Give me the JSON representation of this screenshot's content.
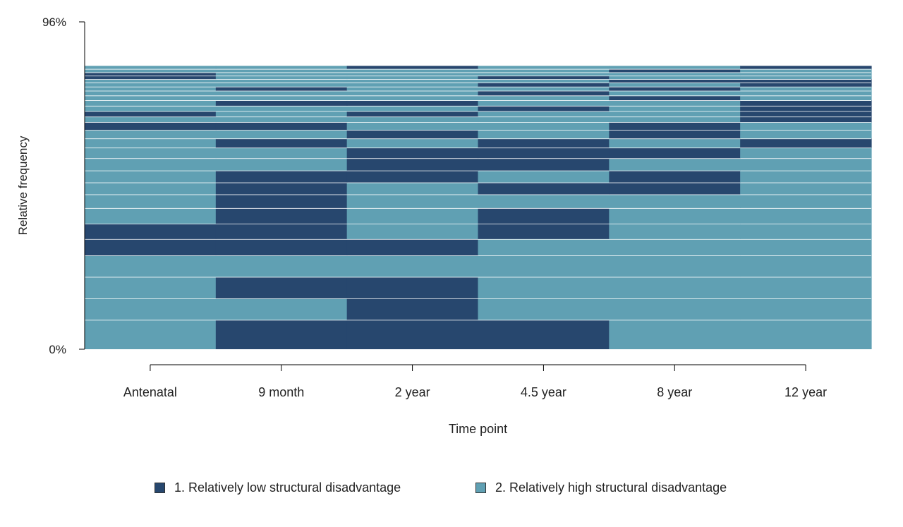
{
  "chart_data": {
    "type": "sequence-index",
    "ylabel": "Relative frequency",
    "xlabel": "Time point",
    "y_ticks": [
      "0%",
      "96%"
    ],
    "ylim": [
      0,
      96
    ],
    "time_points": [
      "Antenatal",
      "9 month",
      "2 year",
      "4.5 year",
      "8 year",
      "12 year"
    ],
    "states": [
      {
        "code": 1,
        "name": "1. Relatively low structural disadvantage",
        "color": "#27476e"
      },
      {
        "code": 2,
        "name": "2. Relatively high structural disadvantage",
        "color": "#60a0b3"
      }
    ],
    "sequences": [
      {
        "freq": 8.6,
        "states": [
          2,
          1,
          1,
          1,
          2,
          2
        ]
      },
      {
        "freq": 6.3,
        "states": [
          2,
          2,
          1,
          2,
          2,
          2
        ]
      },
      {
        "freq": 6.3,
        "states": [
          2,
          1,
          1,
          2,
          2,
          2
        ]
      },
      {
        "freq": 6.3,
        "states": [
          2,
          2,
          2,
          2,
          2,
          2
        ]
      },
      {
        "freq": 4.8,
        "states": [
          1,
          1,
          1,
          2,
          2,
          2
        ]
      },
      {
        "freq": 4.5,
        "states": [
          1,
          1,
          2,
          1,
          2,
          2
        ]
      },
      {
        "freq": 4.6,
        "states": [
          2,
          1,
          2,
          1,
          2,
          2
        ]
      },
      {
        "freq": 4.0,
        "states": [
          2,
          1,
          2,
          2,
          2,
          2
        ]
      },
      {
        "freq": 3.5,
        "states": [
          2,
          1,
          2,
          1,
          1,
          2
        ]
      },
      {
        "freq": 3.5,
        "states": [
          2,
          1,
          1,
          2,
          1,
          2
        ]
      },
      {
        "freq": 3.6,
        "states": [
          2,
          2,
          1,
          1,
          2,
          2
        ]
      },
      {
        "freq": 3.1,
        "states": [
          2,
          2,
          1,
          1,
          1,
          2
        ]
      },
      {
        "freq": 2.7,
        "states": [
          2,
          1,
          2,
          1,
          2,
          1
        ]
      },
      {
        "freq": 2.5,
        "states": [
          2,
          2,
          1,
          2,
          1,
          2
        ]
      },
      {
        "freq": 2.3,
        "states": [
          1,
          1,
          2,
          2,
          1,
          2
        ]
      },
      {
        "freq": 1.6,
        "states": [
          2,
          2,
          2,
          2,
          2,
          1
        ]
      },
      {
        "freq": 1.6,
        "states": [
          1,
          2,
          1,
          2,
          2,
          1
        ]
      },
      {
        "freq": 1.6,
        "states": [
          2,
          2,
          2,
          1,
          2,
          1
        ]
      },
      {
        "freq": 1.6,
        "states": [
          2,
          1,
          1,
          2,
          2,
          1
        ]
      },
      {
        "freq": 1.4,
        "states": [
          2,
          2,
          2,
          2,
          1,
          2
        ]
      },
      {
        "freq": 1.4,
        "states": [
          2,
          2,
          2,
          1,
          2,
          2
        ]
      },
      {
        "freq": 1.2,
        "states": [
          2,
          1,
          2,
          2,
          1,
          2
        ]
      },
      {
        "freq": 1.2,
        "states": [
          2,
          2,
          2,
          1,
          2,
          1
        ]
      },
      {
        "freq": 1.0,
        "states": [
          2,
          2,
          2,
          2,
          1,
          1
        ]
      },
      {
        "freq": 1.0,
        "states": [
          1,
          2,
          2,
          1,
          2,
          2
        ]
      },
      {
        "freq": 1.0,
        "states": [
          1,
          2,
          2,
          2,
          2,
          2
        ]
      },
      {
        "freq": 1.0,
        "states": [
          2,
          2,
          2,
          2,
          1,
          2
        ]
      },
      {
        "freq": 0.9,
        "states": [
          2,
          2,
          1,
          2,
          2,
          1
        ]
      }
    ]
  }
}
